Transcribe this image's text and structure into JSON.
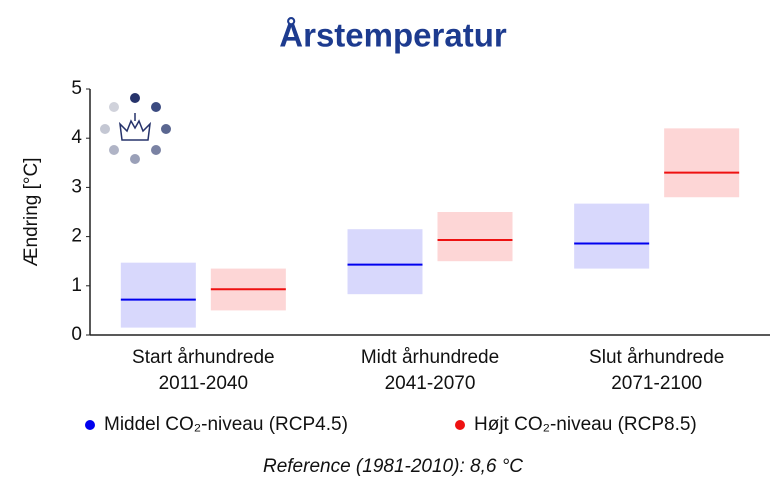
{
  "chart_data": {
    "type": "range_box",
    "title": "Årstemperatur",
    "y_label": "Ændring [°C]",
    "note": "Reference (1981-2010): 8,6 °C",
    "categories": [
      [
        "Start århundrede",
        "2011-2040"
      ],
      [
        "Midt århundrede",
        "2041-2070"
      ],
      [
        "Slut århundrede",
        "2071-2100"
      ]
    ],
    "series": [
      {
        "name": "Middel CO₂-niveau (RCP4.5)",
        "color": "#0000ee",
        "fill": "#d8d8fc",
        "values": [
          0.72,
          1.43,
          1.86
        ],
        "low": [
          0.15,
          0.83,
          1.35
        ],
        "high": [
          1.47,
          2.15,
          2.67
        ]
      },
      {
        "name": "Højt CO₂-niveau (RCP8.5)",
        "color": "#ee1111",
        "fill": "#fdd6d6",
        "values": [
          0.93,
          1.93,
          3.3
        ],
        "low": [
          0.5,
          1.5,
          2.8
        ],
        "high": [
          1.35,
          2.5,
          4.2
        ]
      }
    ],
    "ylim": [
      0,
      5
    ],
    "yticks": [
      0,
      1,
      2,
      3,
      4,
      5
    ],
    "grid": false
  }
}
